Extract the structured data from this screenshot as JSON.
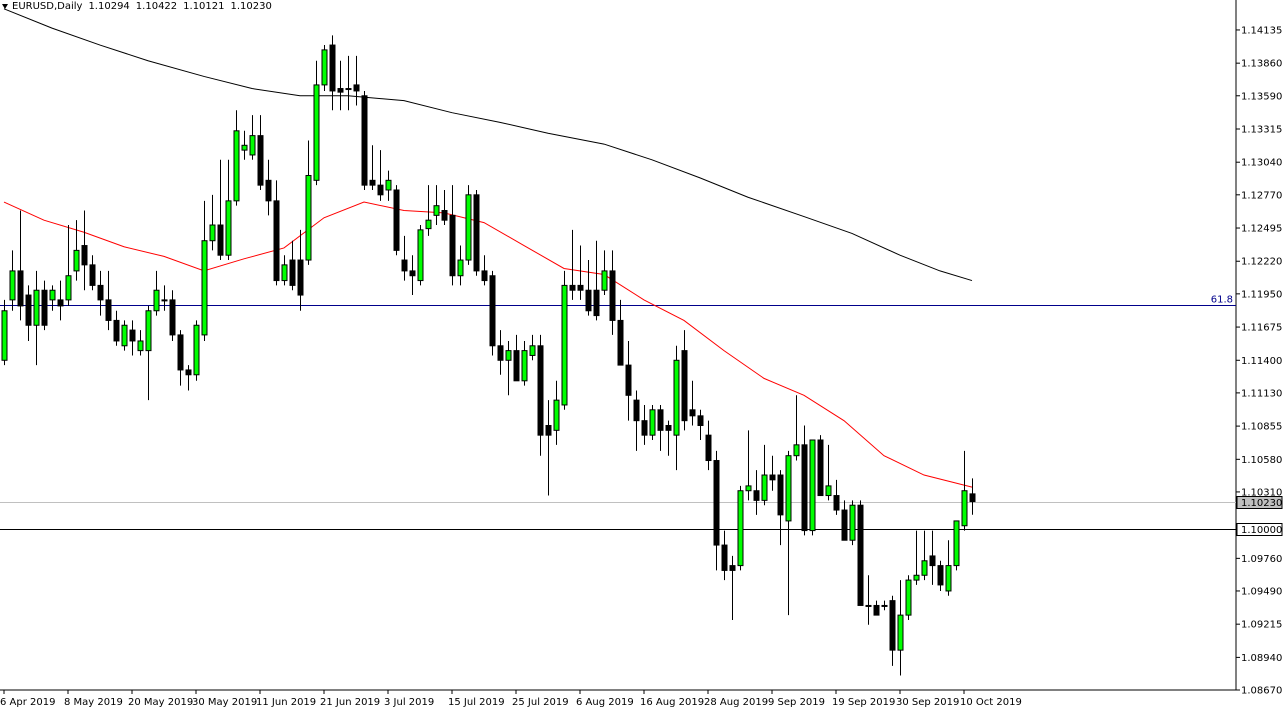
{
  "chart_data": {
    "type": "candlestick",
    "title": "EURUSD,Daily",
    "quote": [
      "1.10294",
      "1.10422",
      "1.10121",
      "1.10230"
    ],
    "bull_color": "#00ff00",
    "bear_color": "#000000",
    "wick_color": "#000000",
    "ylim": [
      1.0867,
      1.14383
    ],
    "yticks": [
      1.14135,
      {
        "value": 1.1386,
        "label": "1.13860"
      },
      {
        "value": 1.1359,
        "label": "1.13590"
      },
      1.13315,
      {
        "value": 1.1304,
        "label": "1.13040"
      },
      {
        "value": 1.1277,
        "label": "1.12770"
      },
      1.12495,
      {
        "value": 1.1222,
        "label": "1.12220"
      },
      {
        "value": 1.1195,
        "label": "1.11950"
      },
      1.11675,
      {
        "value": 1.114,
        "label": "1.11400"
      },
      {
        "value": 1.1113,
        "label": "1.11130"
      },
      1.10855,
      {
        "value": 1.1058,
        "label": "1.10580"
      },
      {
        "value": 1.1031,
        "label": "1.10310"
      },
      {
        "value": 1.0976,
        "label": "1.09760"
      },
      {
        "value": 1.0949,
        "label": "1.09490"
      },
      1.09215,
      {
        "value": 1.0894,
        "label": "1.08940"
      },
      {
        "value": 1.0867,
        "label": "1.08670"
      }
    ],
    "categories": [
      "6 Apr 2019",
      null,
      null,
      null,
      null,
      null,
      null,
      null,
      "8 May 2019",
      null,
      null,
      null,
      null,
      null,
      null,
      null,
      "20 May 2019",
      null,
      null,
      null,
      null,
      null,
      null,
      null,
      "30 May 2019",
      null,
      null,
      null,
      null,
      null,
      null,
      null,
      "11 Jun 2019",
      null,
      null,
      null,
      null,
      null,
      null,
      null,
      "21 Jun 2019",
      null,
      null,
      null,
      null,
      null,
      null,
      null,
      "3 Jul 2019",
      null,
      null,
      null,
      null,
      null,
      null,
      null,
      "15 Jul 2019",
      null,
      null,
      null,
      null,
      null,
      null,
      null,
      "25 Jul 2019",
      null,
      null,
      null,
      null,
      null,
      null,
      null,
      "6 Aug 2019",
      null,
      null,
      null,
      null,
      null,
      null,
      null,
      "16 Aug 2019",
      null,
      null,
      null,
      null,
      null,
      null,
      null,
      "28 Aug 2019",
      null,
      null,
      null,
      null,
      null,
      null,
      null,
      "9 Sep 2019",
      null,
      null,
      null,
      null,
      null,
      null,
      null,
      "19 Sep 2019",
      null,
      null,
      null,
      null,
      null,
      null,
      null,
      "30 Sep 2019",
      null,
      null,
      null,
      null,
      null,
      null,
      null,
      "10 Oct 2019",
      null
    ],
    "open": [
      1.114,
      1.119,
      1.1214,
      1.1194,
      1.1169,
      1.1198,
      1.119,
      1.119,
      1.119,
      1.1214,
      1.1235,
      1.1219,
      1.1202,
      1.119,
      1.1173,
      1.1152,
      1.1165,
      1.1148,
      1.1148,
      1.1181,
      1.119,
      1.119,
      1.1161,
      1.1132,
      1.1128,
      1.1161,
      1.1239,
      1.1252,
      1.1227,
      1.1272,
      1.1314,
      1.131,
      1.1326,
      1.1289,
      1.1272,
      1.1206,
      1.1223,
      1.1223,
      1.1223,
      1.1289,
      1.1368,
      1.1401,
      1.1365,
      1.1365,
      1.1368,
      1.1359,
      1.1289,
      1.1285,
      1.1281,
      1.1281,
      1.1223,
      1.1214,
      1.1206,
      1.1249,
      1.126,
      1.1264,
      1.126,
      1.121,
      1.1223,
      1.1277,
      1.1214,
      1.121,
      1.1152,
      1.114,
      1.1148,
      1.1123,
      1.1144,
      1.1152,
      1.1086,
      1.1082,
      1.1103,
      1.1202,
      1.1202,
      1.1198,
      1.1198,
      1.1198,
      1.1214,
      1.1173,
      1.1136,
      1.1107,
      1.109,
      1.1078,
      1.1099,
      1.1086,
      1.1078,
      1.1148,
      1.1099,
      1.1094,
      1.1078,
      1.1057,
      1.0987,
      1.097,
      1.097,
      1.1032,
      1.1032,
      1.1024,
      1.1045,
      1.1045,
      1.1007,
      1.1061,
      1.107,
      1.0999,
      1.1074,
      1.1028,
      1.1028,
      1.1016,
      1.0991,
      1.102,
      1.0937,
      1.0937,
      1.0937,
      1.0941,
      1.09,
      1.0929,
      1.0958,
      1.0962,
      1.0978,
      1.097,
      1.0949,
      1.097,
      1.1003,
      1.10294
    ],
    "high": [
      1.119,
      1.1231,
      1.1264,
      1.1202,
      1.1214,
      1.1206,
      1.1202,
      1.1206,
      1.1252,
      1.1256,
      1.1264,
      1.1227,
      1.1214,
      1.1214,
      1.1181,
      1.1173,
      1.1173,
      1.1165,
      1.1185,
      1.1214,
      1.1202,
      1.1198,
      1.1165,
      1.1136,
      1.1173,
      1.1272,
      1.1277,
      1.1306,
      1.1306,
      1.1347,
      1.133,
      1.1343,
      1.1343,
      1.1306,
      1.1289,
      1.1227,
      1.1239,
      1.1248,
      1.1322,
      1.1388,
      1.1401,
      1.1409,
      1.1388,
      1.1392,
      1.1392,
      1.1363,
      1.1318,
      1.1314,
      1.1297,
      1.1285,
      1.1243,
      1.1227,
      1.1252,
      1.1285,
      1.1285,
      1.1281,
      1.1285,
      1.1235,
      1.1285,
      1.1281,
      1.1227,
      1.1214,
      1.1165,
      1.1156,
      1.1161,
      1.1156,
      1.1161,
      1.1161,
      1.1107,
      1.1123,
      1.1214,
      1.1248,
      1.1235,
      1.1223,
      1.1239,
      1.1231,
      1.1231,
      1.119,
      1.1156,
      1.1115,
      1.1103,
      1.1103,
      1.1103,
      1.109,
      1.1152,
      1.1165,
      1.1123,
      1.1099,
      1.109,
      1.1065,
      1.0999,
      1.0978,
      1.1036,
      1.1082,
      1.1049,
      1.107,
      1.1061,
      1.1049,
      1.1065,
      1.1111,
      1.1086,
      1.1074,
      1.1078,
      1.107,
      1.1041,
      1.1024,
      1.1024,
      1.1024,
      1.0962,
      1.0941,
      1.0941,
      1.0945,
      1.0958,
      1.0962,
      1.0999,
      1.0999,
      1.0999,
      1.0974,
      1.0991,
      1.1007,
      1.1065,
      1.10422
    ],
    "low": [
      1.1136,
      1.1181,
      1.1173,
      1.1156,
      1.1136,
      1.1165,
      1.1181,
      1.1173,
      1.1185,
      1.1206,
      1.1198,
      1.1198,
      1.1177,
      1.1165,
      1.1152,
      1.1148,
      1.1144,
      1.1144,
      1.1107,
      1.1177,
      1.1181,
      1.1156,
      1.1119,
      1.1115,
      1.1123,
      1.1156,
      1.1231,
      1.1223,
      1.1223,
      1.1268,
      1.1306,
      1.1306,
      1.1281,
      1.126,
      1.1202,
      1.1202,
      1.1198,
      1.1181,
      1.1219,
      1.1285,
      1.1363,
      1.1347,
      1.1347,
      1.1347,
      1.1351,
      1.1281,
      1.1281,
      1.1272,
      1.1272,
      1.1227,
      1.1206,
      1.1194,
      1.1202,
      1.1243,
      1.1252,
      1.1252,
      1.1202,
      1.1202,
      1.1219,
      1.121,
      1.1202,
      1.1144,
      1.1128,
      1.1111,
      1.1123,
      1.1119,
      1.114,
      1.1061,
      1.1028,
      1.107,
      1.1099,
      1.119,
      1.119,
      1.1177,
      1.1173,
      1.1194,
      1.1161,
      1.1136,
      1.109,
      1.1065,
      1.107,
      1.1074,
      1.1065,
      1.1061,
      1.1049,
      1.1082,
      1.1086,
      1.1074,
      1.1049,
      1.0966,
      1.0958,
      1.0925,
      1.0966,
      1.1024,
      1.1012,
      1.102,
      1.1032,
      1.0987,
      1.0929,
      1.1057,
      1.0995,
      1.0995,
      1.1028,
      1.1024,
      1.1012,
      1.0991,
      1.0987,
      1.0937,
      1.0921,
      1.0929,
      1.0933,
      1.0887,
      1.0879,
      1.0925,
      1.0954,
      1.0958,
      1.0954,
      1.0949,
      1.0945,
      1.0966,
      1.0999,
      1.10121
    ],
    "close": [
      1.1181,
      1.1214,
      1.1185,
      1.1169,
      1.1198,
      1.1169,
      1.1198,
      1.1185,
      1.121,
      1.1231,
      1.1219,
      1.1202,
      1.119,
      1.1173,
      1.1156,
      1.1169,
      1.1156,
      1.1156,
      1.1181,
      1.1198,
      1.119,
      1.1161,
      1.1132,
      1.1128,
      1.1169,
      1.1239,
      1.1252,
      1.1227,
      1.1272,
      1.133,
      1.1318,
      1.1326,
      1.1285,
      1.1272,
      1.1206,
      1.1219,
      1.1202,
      1.1194,
      1.1293,
      1.1368,
      1.1397,
      1.1363,
      1.1362,
      1.1365,
      1.1363,
      1.1285,
      1.1285,
      1.1277,
      1.1289,
      1.1231,
      1.1214,
      1.121,
      1.1248,
      1.1256,
      1.1268,
      1.1256,
      1.121,
      1.1223,
      1.1277,
      1.1214,
      1.1206,
      1.1152,
      1.114,
      1.1148,
      1.1123,
      1.1148,
      1.1152,
      1.1078,
      1.1078,
      1.1107,
      1.1202,
      1.1198,
      1.1198,
      1.1181,
      1.1177,
      1.1214,
      1.1173,
      1.1136,
      1.1111,
      1.109,
      1.1078,
      1.1099,
      1.1082,
      1.1082,
      1.114,
      1.109,
      1.1094,
      1.1086,
      1.1057,
      1.0987,
      1.0966,
      1.0966,
      1.1032,
      1.1036,
      1.1024,
      1.1045,
      1.1041,
      1.1012,
      1.1061,
      1.107,
      1.0999,
      1.1074,
      1.1028,
      1.1036,
      1.1016,
      1.0991,
      1.102,
      1.0937,
      1.0937,
      1.0929,
      1.0937,
      1.09,
      1.0929,
      1.0958,
      1.0962,
      1.0974,
      1.097,
      1.0954,
      1.097,
      1.1007,
      1.1032,
      1.1023
    ],
    "series": [
      {
        "color": "#ff0000",
        "x": [
          0,
          5,
          10,
          15,
          20,
          25,
          30,
          35,
          40,
          45,
          50,
          55,
          60,
          65,
          70,
          75,
          80,
          85,
          90,
          95,
          100,
          105,
          110,
          115,
          121
        ],
        "values": [
          1.1271,
          1.1256,
          1.1246,
          1.1234,
          1.1226,
          1.1214,
          1.1224,
          1.1233,
          1.1258,
          1.1271,
          1.1264,
          1.1262,
          1.1254,
          1.1235,
          1.1216,
          1.1211,
          1.119,
          1.1173,
          1.1148,
          1.1125,
          1.1111,
          1.109,
          1.1061,
          1.1045,
          1.1035
        ]
      },
      {
        "color": "#000000",
        "x": [
          0,
          6,
          12,
          18,
          25,
          31,
          37,
          43,
          50,
          56,
          62,
          68,
          75,
          81,
          87,
          93,
          100,
          106,
          112,
          117,
          121
        ],
        "values": [
          1.1431,
          1.1415,
          1.1401,
          1.1388,
          1.1375,
          1.1365,
          1.1359,
          1.1359,
          1.1355,
          1.1345,
          1.1337,
          1.1328,
          1.1319,
          1.1306,
          1.1291,
          1.1275,
          1.1259,
          1.1245,
          1.1227,
          1.1214,
          1.1206
        ]
      }
    ],
    "hlines": [
      {
        "value": 1.11858,
        "label": "61.8",
        "color": "#00008b",
        "label_position": "line"
      },
      {
        "value": 1.1,
        "label": "1.10000",
        "color": "#000000",
        "label_position": "axis"
      },
      {
        "value": 1.1023,
        "label": "1.10230",
        "color": "#c0c0c0",
        "label_position": "axis"
      }
    ]
  }
}
